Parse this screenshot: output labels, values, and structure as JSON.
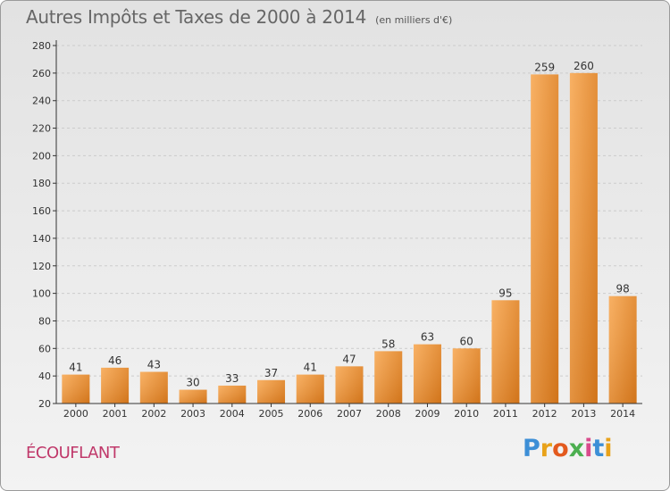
{
  "header": {
    "title": "Autres Impôts et Taxes de 2000 à 2014",
    "subtitle": "(en milliers d'€)"
  },
  "commune": "ÉCOUFLANT",
  "brand": {
    "letters": [
      "P",
      "r",
      "o",
      "x",
      "i",
      "t",
      "i"
    ]
  },
  "colors": {
    "bar_light": "#f7a64f",
    "bar_dark": "#d9751c",
    "axis": "#333333",
    "grid": "#cccccc",
    "commune": "#c0386a"
  },
  "chart_data": {
    "type": "bar",
    "title": "Autres Impôts et Taxes de 2000 à 2014",
    "subtitle": "(en milliers d'€)",
    "xlabel": "",
    "ylabel": "",
    "categories": [
      "2000",
      "2001",
      "2002",
      "2003",
      "2004",
      "2005",
      "2006",
      "2007",
      "2008",
      "2009",
      "2010",
      "2011",
      "2012",
      "2013",
      "2014"
    ],
    "values": [
      41,
      46,
      43,
      30,
      33,
      37,
      41,
      47,
      58,
      63,
      60,
      95,
      259,
      260,
      98
    ],
    "ylim": [
      20,
      280
    ],
    "yticks": [
      20,
      40,
      60,
      80,
      100,
      120,
      140,
      160,
      180,
      200,
      220,
      240,
      260,
      280
    ],
    "grid": true,
    "legend": "none"
  }
}
